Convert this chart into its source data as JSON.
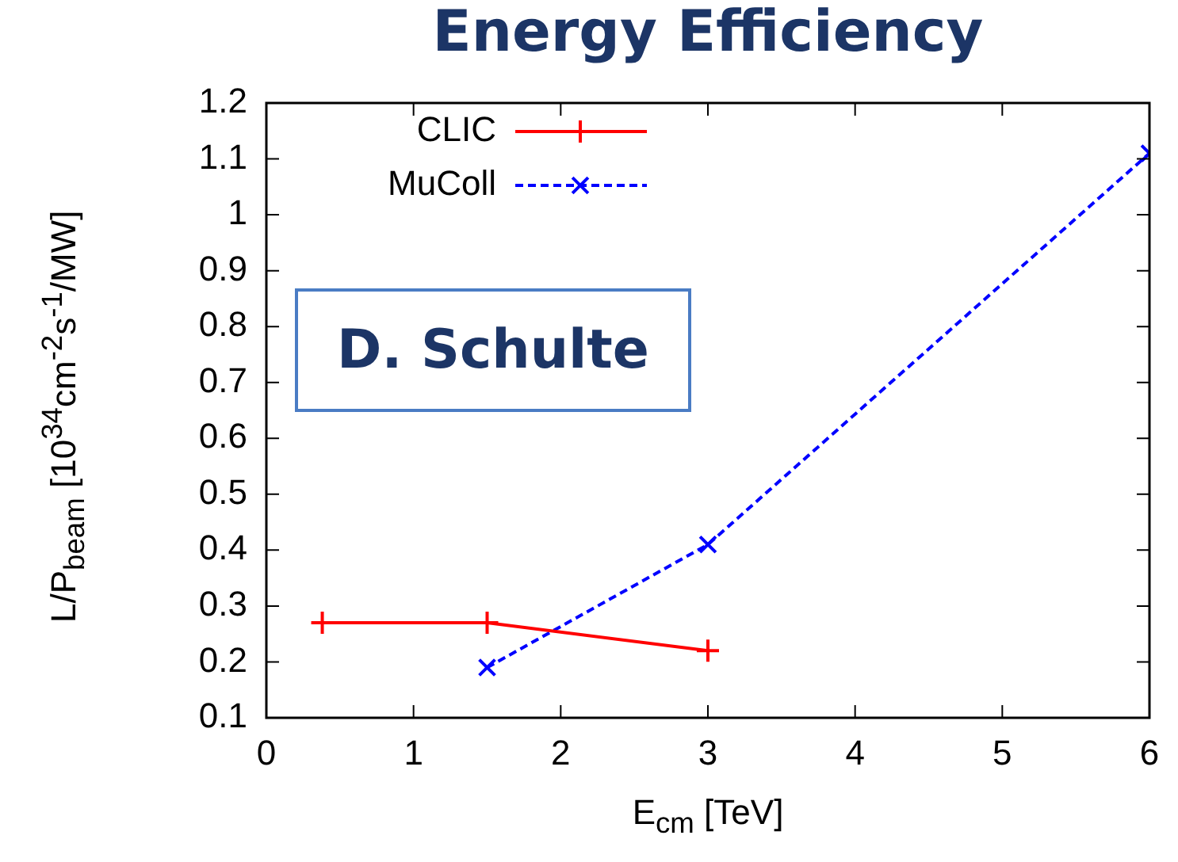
{
  "chart_data": {
    "type": "line",
    "title": "Energy Efficiency",
    "xlabel": "E$_{cm}$ [TeV]",
    "ylabel": "L/P$_{beam}$ [10$^{34}$cm$^{-2}$s$^{-1}$/MW]",
    "annotations": [
      "D. Schulte"
    ],
    "xlim": [
      0,
      6
    ],
    "xticks": [
      0,
      1,
      2,
      3,
      4,
      5,
      6
    ],
    "ylim": [
      0.1,
      1.2
    ],
    "yticks": [
      0.1,
      0.2,
      0.3,
      0.4,
      0.5,
      0.6,
      0.7,
      0.8,
      0.9,
      1,
      1.1,
      1.2
    ],
    "grid": false,
    "legend": "top left",
    "series": [
      {
        "name": "CLIC",
        "color": "#ff0000",
        "x": [
          0.38,
          1.5,
          3
        ],
        "values": [
          0.27,
          0.27,
          0.22
        ],
        "marker": "cross",
        "line_style": "solid"
      },
      {
        "name": "MuColl",
        "color": "#0000ff",
        "x": [
          1.5,
          3,
          6
        ],
        "values": [
          0.19,
          0.41,
          1.11
        ],
        "marker": "x",
        "line_style": "dashed"
      }
    ]
  }
}
